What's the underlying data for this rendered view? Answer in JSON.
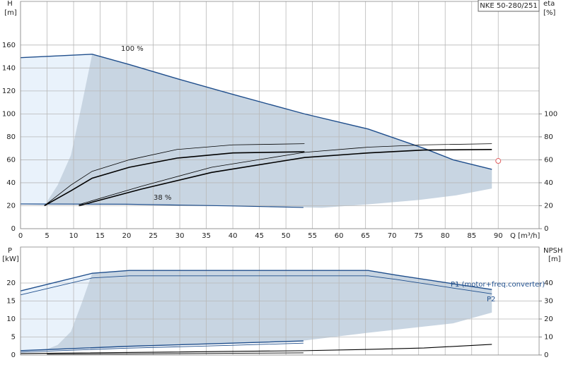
{
  "chart_data": [
    {
      "type": "line",
      "title": "NKE 50-280/251",
      "ylabel": "H",
      "yunit": "[m]",
      "y2label": "eta",
      "y2unit": "[%]",
      "xlabel": "Q [m³/h]",
      "xlim": [
        0,
        97.7
      ],
      "xticks": [
        0,
        5,
        10,
        15,
        20,
        25,
        30,
        35,
        40,
        45,
        50,
        55,
        60,
        65,
        70,
        75,
        80,
        85,
        90
      ],
      "ylim": [
        0,
        198
      ],
      "yticks": [
        0,
        20,
        40,
        60,
        80,
        100,
        120,
        140,
        160
      ],
      "y2lim": [
        0,
        198
      ],
      "y2ticks": [
        0,
        20,
        40,
        60,
        80,
        100
      ],
      "annotations": [
        "100 %",
        "38 %"
      ],
      "areas": [
        {
          "color": "#c8d5e2",
          "x": [
            0,
            13.5,
            20.5,
            30,
            40,
            53.5,
            65.5,
            76,
            81.5,
            88.8,
            88.8,
            82,
            75,
            65,
            56.8,
            53.3,
            40,
            20,
            0
          ],
          "values": [
            149,
            152,
            143,
            130,
            117,
            100,
            86.8,
            70,
            60,
            51.7,
            35,
            29,
            25,
            21,
            18.2,
            18.5,
            19.8,
            21.3,
            21.5
          ]
        },
        {
          "color": "#e9f2fb",
          "x": [
            0,
            13.5,
            11.5,
            9.5,
            7,
            4.5,
            0
          ],
          "values": [
            149,
            152,
            107,
            64,
            38,
            20,
            21.5
          ]
        }
      ],
      "series": [
        {
          "color": "#1f4e8c",
          "width": 1.4,
          "x": [
            0,
            13.5,
            20.5,
            30,
            40,
            53.5,
            65.5,
            76,
            81.5,
            88.8
          ],
          "values": [
            149,
            152,
            143,
            130,
            117,
            100,
            86.8,
            70,
            60,
            51.7
          ]
        },
        {
          "color": "#1f4e8c",
          "width": 1.2,
          "x": [
            0,
            20,
            40,
            53.3
          ],
          "values": [
            21.5,
            21.3,
            19.8,
            18.5
          ]
        },
        {
          "color": "#000000",
          "width": 0.8,
          "axis": "y2",
          "x": [
            4.5,
            9.5,
            13.5,
            20.5,
            29.5,
            40,
            53.5
          ],
          "values": [
            20,
            38,
            50,
            60,
            69,
            73,
            74
          ]
        },
        {
          "color": "#000000",
          "width": 1.6,
          "axis": "y2",
          "x": [
            4.5,
            9.5,
            13.5,
            20.5,
            29.5,
            40,
            53.5
          ],
          "values": [
            20,
            33,
            44,
            53.5,
            61.5,
            66,
            67
          ]
        },
        {
          "color": "#000000",
          "width": 0.8,
          "axis": "y2",
          "x": [
            11,
            22.8,
            36,
            53.5,
            65.5,
            76,
            88.8
          ],
          "values": [
            21,
            37,
            53.5,
            66.5,
            71,
            73,
            74
          ]
        },
        {
          "color": "#000000",
          "width": 1.6,
          "axis": "y2",
          "x": [
            11,
            22.8,
            36,
            53.5,
            65.5,
            76,
            88.8
          ],
          "values": [
            20,
            34.5,
            49,
            62,
            66,
            68.5,
            69
          ]
        }
      ],
      "marker": {
        "x": 90,
        "y": 59,
        "color": "#e06060"
      }
    },
    {
      "type": "line",
      "ylabel": "P",
      "yunit": "[kW]",
      "y2label": "NPSH",
      "y2unit": "[m]",
      "xlim": [
        0,
        97.7
      ],
      "xticks": [
        0,
        5,
        10,
        15,
        20,
        25,
        30,
        35,
        40,
        45,
        50,
        55,
        60,
        65,
        70,
        75,
        80,
        85,
        90
      ],
      "ylim": [
        0,
        30
      ],
      "yticks": [
        0,
        5,
        10,
        15,
        20
      ],
      "y2lim": [
        0,
        60
      ],
      "y2ticks": [
        0,
        10,
        20,
        30,
        40
      ],
      "areas": [
        {
          "color": "#c8d5e2",
          "x": [
            0,
            13.5,
            20.5,
            65.5,
            70.8,
            81.5,
            88.8,
            88.8,
            81.5,
            65,
            53.3,
            30,
            0
          ],
          "values": [
            17.8,
            22.7,
            23.5,
            23.5,
            22.2,
            19.8,
            18.2,
            11.8,
            8.8,
            6.1,
            4,
            2.8,
            1.2
          ]
        },
        {
          "color": "#e9f2fb",
          "x": [
            0,
            13.5,
            11.5,
            9.5,
            7,
            4.5,
            0
          ],
          "values": [
            17.8,
            22.7,
            14.3,
            6.5,
            2.8,
            1.3,
            1.2
          ]
        }
      ],
      "series": [
        {
          "name": "P1 (motor+freq.converter)",
          "color": "#1f4e8c",
          "width": 1.4,
          "x": [
            0,
            13.5,
            20.5,
            65.5,
            70.8,
            81.5,
            88.8
          ],
          "values": [
            17.8,
            22.7,
            23.5,
            23.5,
            22.2,
            19.8,
            18.2
          ]
        },
        {
          "name": "P2",
          "color": "#1f4e8c",
          "width": 0.9,
          "x": [
            0,
            13.5,
            20.5,
            65.5,
            70.8,
            81.5,
            88.8
          ],
          "values": [
            16.7,
            21.4,
            22,
            22,
            21,
            18.6,
            17
          ]
        },
        {
          "color": "#1f4e8c",
          "width": 1.4,
          "x": [
            0,
            20,
            40,
            53.3
          ],
          "values": [
            1.2,
            2.4,
            3.3,
            3.9
          ]
        },
        {
          "color": "#1f4e8c",
          "width": 0.9,
          "x": [
            0,
            20,
            40,
            53.3
          ],
          "values": [
            0.8,
            1.9,
            2.7,
            3.3
          ]
        },
        {
          "color": "#000000",
          "width": 1.1,
          "axis": "y2",
          "x": [
            0,
            53.3,
            65.5,
            76,
            88.8
          ],
          "values": [
            0.8,
            2.4,
            3.1,
            3.9,
            5.9
          ]
        },
        {
          "color": "#000000",
          "width": 0.9,
          "axis": "y2",
          "x": [
            5,
            30,
            53.3
          ],
          "values": [
            0.4,
            0.8,
            1.2
          ]
        }
      ]
    }
  ]
}
